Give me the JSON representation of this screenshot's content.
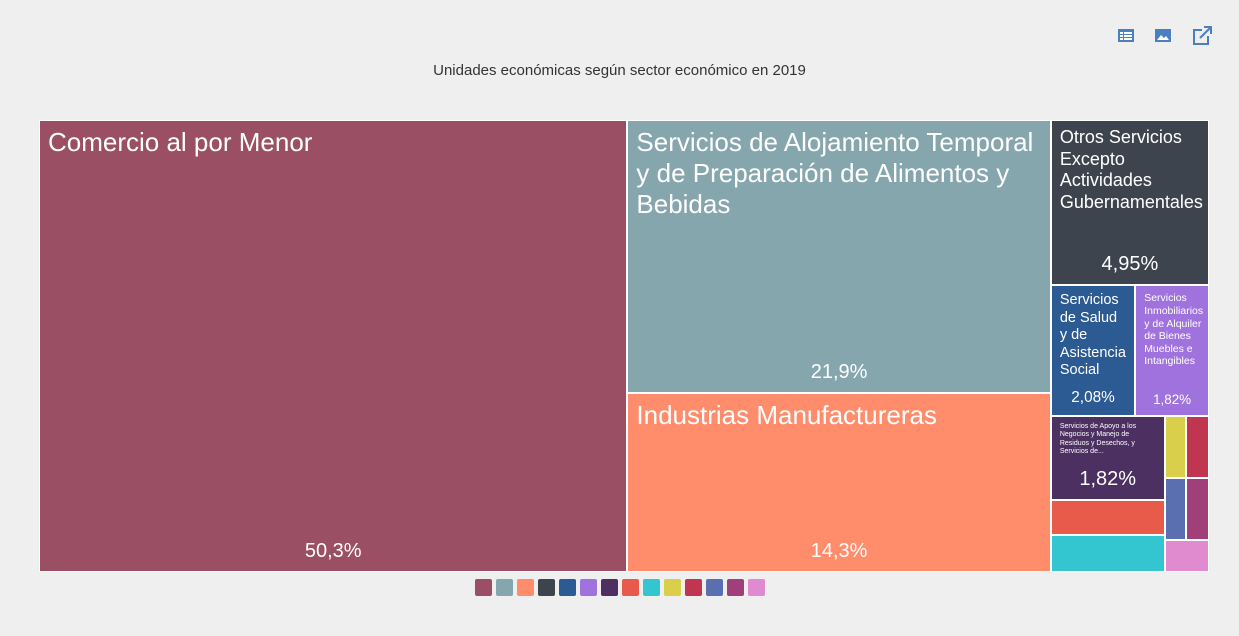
{
  "chart_data": {
    "type": "treemap",
    "title": "Unidades económicas según sector económico en 2019",
    "categories": [
      "Comercio al por Menor",
      "Servicios de Alojamiento Temporal y de Preparación de Alimentos y Bebidas",
      "Industrias Manufactureras",
      "Otros Servicios Excepto Actividades Gubernamentales",
      "Servicios de Salud y de Asistencia Social",
      "Servicios Inmobiliarios y de Alquiler de Bienes Muebles e Intangibles",
      "Servicios de Apoyo a los Negocios y Manejo de Residuos y Desechos, y Servicios de...",
      null,
      null,
      null,
      null,
      null,
      null,
      null
    ],
    "values": [
      50.3,
      21.9,
      14.3,
      4.95,
      2.08,
      1.82,
      1.82,
      0.75,
      0.79,
      0.25,
      0.27,
      0.25,
      0.27,
      0.27
    ],
    "value_labels": [
      "50,3%",
      "21,9%",
      "14,3%",
      "4,95%",
      "2,08%",
      "1,82%",
      "1,82%",
      null,
      null,
      null,
      null,
      null,
      null,
      null
    ],
    "colors": [
      "#9b4f64",
      "#86a6ae",
      "#ff8c6b",
      "#3d444d",
      "#2c5a93",
      "#9f72dd",
      "#4b3061",
      "#e85a4a",
      "#33c6d0",
      "#d9cf4a",
      "#c0354f",
      "#5a6fb0",
      "#a03f7a",
      "#e08ad0"
    ]
  }
}
